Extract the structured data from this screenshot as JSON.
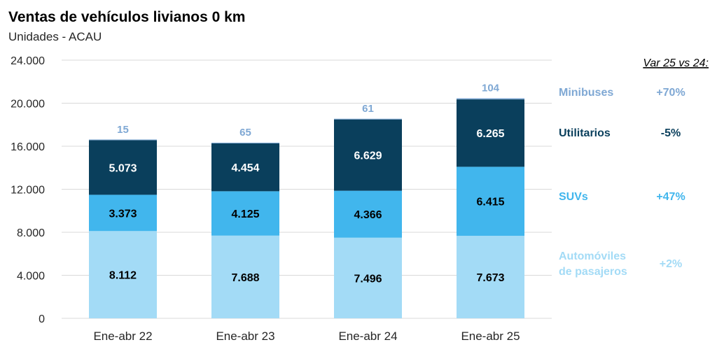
{
  "chart_data": {
    "type": "bar",
    "stacked": true,
    "title": "Ventas de vehículos livianos 0 km",
    "subtitle": "Unidades - ACAU",
    "categories": [
      "Ene-abr 22",
      "Ene-abr 23",
      "Ene-abr 24",
      "Ene-abr 25"
    ],
    "ylim": [
      0,
      24000
    ],
    "yticks": [
      0,
      4000,
      8000,
      12000,
      16000,
      20000,
      24000
    ],
    "ytick_labels": [
      "0",
      "4.000",
      "8.000",
      "12.000",
      "16.000",
      "20.000",
      "24.000"
    ],
    "grid": true,
    "legend_position": "right",
    "var_header": "Var 25 vs 24:",
    "series": [
      {
        "name": "Automóviles de pasajeros",
        "name_lines": [
          "Automóviles",
          "de pasajeros"
        ],
        "values": [
          8112,
          7688,
          7496,
          7673
        ],
        "labels": [
          "8.112",
          "7.688",
          "7.496",
          "7.673"
        ],
        "color": "#a3dbf6",
        "label_color": "#000000",
        "variation": "+2%"
      },
      {
        "name": "SUVs",
        "name_lines": [
          "SUVs"
        ],
        "values": [
          3373,
          4125,
          4366,
          6415
        ],
        "labels": [
          "3.373",
          "4.125",
          "4.366",
          "6.415"
        ],
        "color": "#41b6ed",
        "label_color": "#000000",
        "variation": "+47%"
      },
      {
        "name": "Utilitarios",
        "name_lines": [
          "Utilitarios"
        ],
        "values": [
          5073,
          4454,
          6629,
          6265
        ],
        "labels": [
          "5.073",
          "4.454",
          "6.629",
          "6.265"
        ],
        "color": "#0a3f5c",
        "label_color": "#ffffff",
        "variation": "-5%"
      },
      {
        "name": "Minibuses",
        "name_lines": [
          "Minibuses"
        ],
        "values": [
          15,
          65,
          61,
          104
        ],
        "labels": [
          "15",
          "65",
          "61",
          "104"
        ],
        "color": "#7fa8d4",
        "label_color": "#7fa8d4",
        "variation": "+70%"
      }
    ]
  }
}
